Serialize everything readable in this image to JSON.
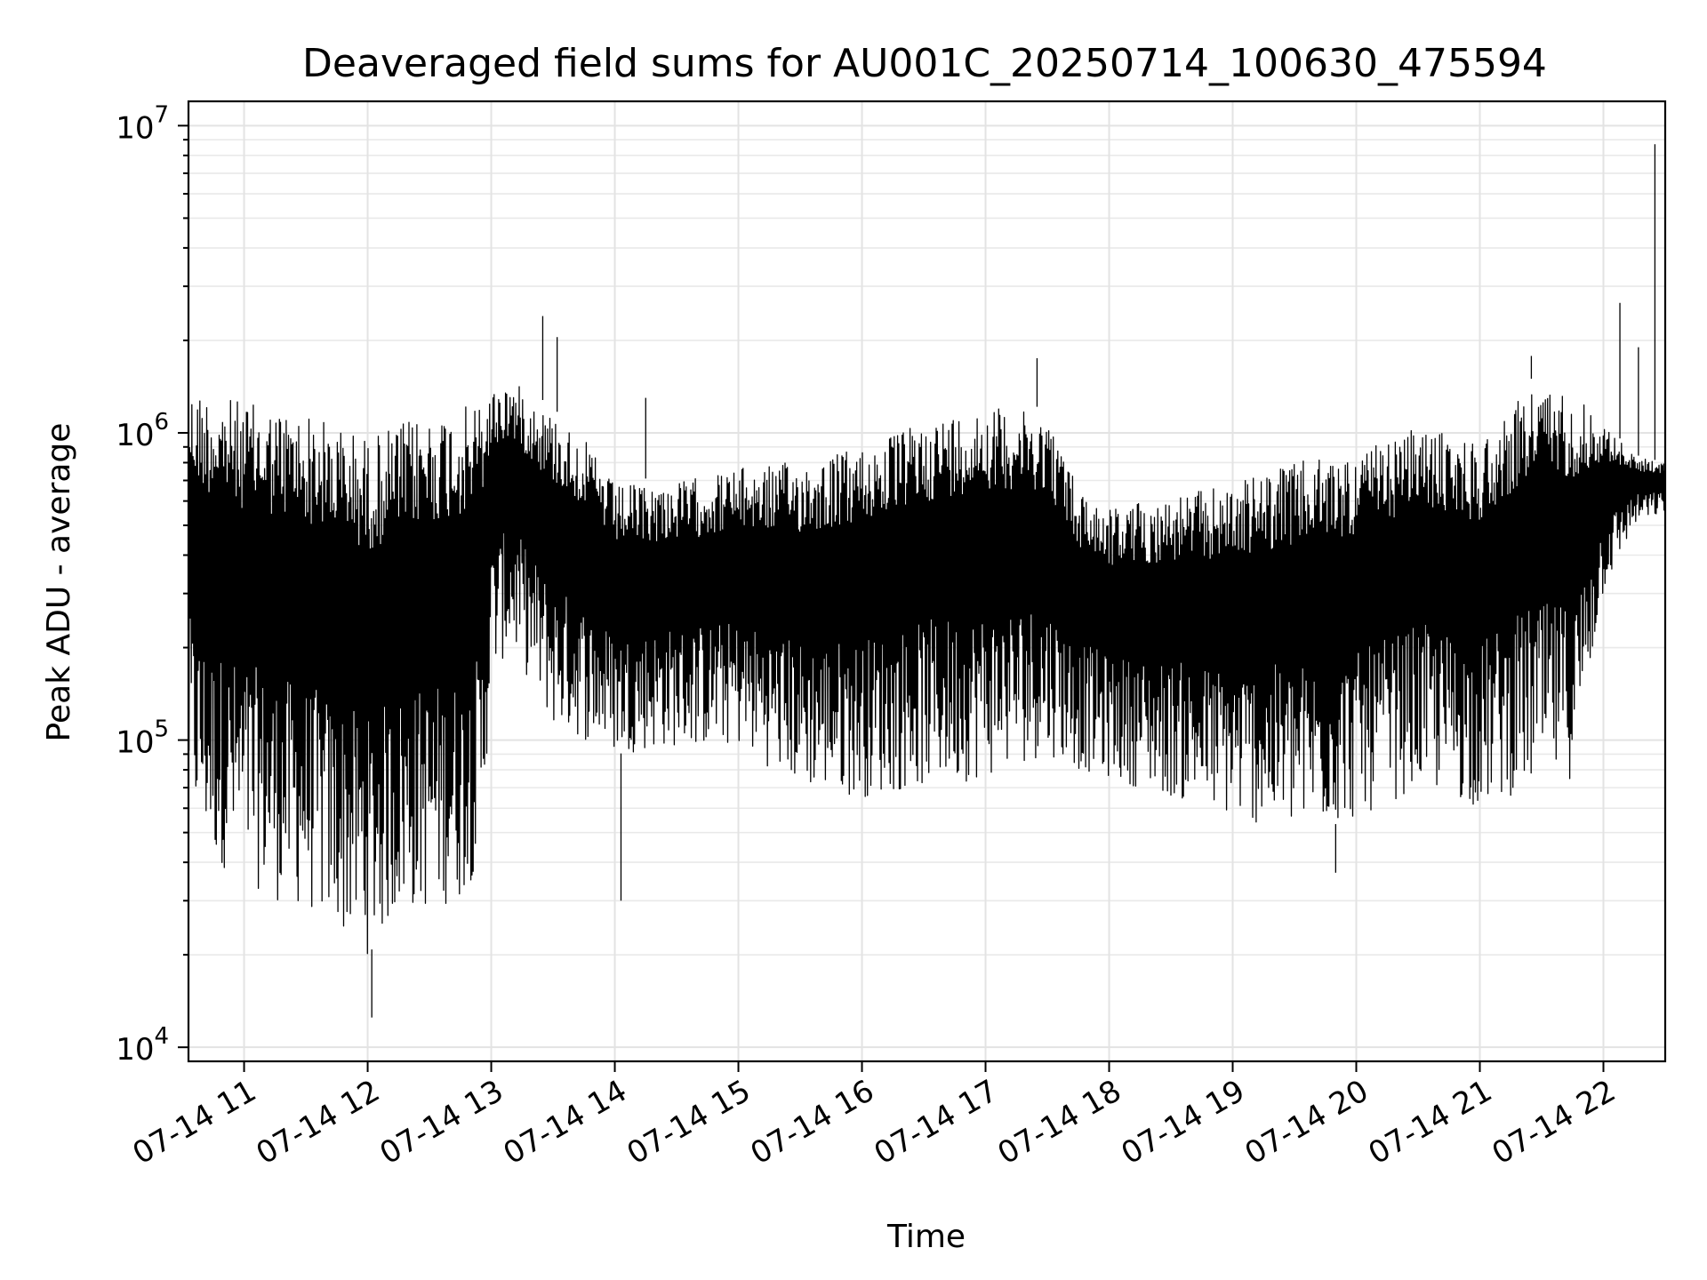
{
  "chart_data": {
    "type": "line",
    "title": "Deaveraged field sums for AU001C_20250714_100630_475594",
    "xlabel": "Time",
    "ylabel": "Peak ADU - average",
    "y_scale": "log",
    "ylim": [
      9000,
      12000000
    ],
    "xlim": [
      "2025-07-14T10:33",
      "2025-07-14T22:30"
    ],
    "grid": "major and minor",
    "x_ticks": [
      {
        "value": "2025-07-14T11:00",
        "label": "07-14 11"
      },
      {
        "value": "2025-07-14T12:00",
        "label": "07-14 12"
      },
      {
        "value": "2025-07-14T13:00",
        "label": "07-14 13"
      },
      {
        "value": "2025-07-14T14:00",
        "label": "07-14 14"
      },
      {
        "value": "2025-07-14T15:00",
        "label": "07-14 15"
      },
      {
        "value": "2025-07-14T16:00",
        "label": "07-14 16"
      },
      {
        "value": "2025-07-14T17:00",
        "label": "07-14 17"
      },
      {
        "value": "2025-07-14T18:00",
        "label": "07-14 18"
      },
      {
        "value": "2025-07-14T19:00",
        "label": "07-14 19"
      },
      {
        "value": "2025-07-14T20:00",
        "label": "07-14 20"
      },
      {
        "value": "2025-07-14T21:00",
        "label": "07-14 21"
      },
      {
        "value": "2025-07-14T22:00",
        "label": "07-14 22"
      }
    ],
    "y_ticks": [
      {
        "value": 10000,
        "base": "10",
        "exp": "4"
      },
      {
        "value": 100000,
        "base": "10",
        "exp": "5"
      },
      {
        "value": 1000000,
        "base": "10",
        "exp": "6"
      },
      {
        "value": 10000000,
        "base": "10",
        "exp": "7"
      }
    ],
    "envelope": [
      {
        "t": "2025-07-14T10:33",
        "high": 1500000,
        "low": 60000
      },
      {
        "t": "2025-07-14T10:45",
        "high": 1450000,
        "low": 40000
      },
      {
        "t": "2025-07-14T11:00",
        "high": 1350000,
        "low": 35000
      },
      {
        "t": "2025-07-14T11:15",
        "high": 1300000,
        "low": 30000
      },
      {
        "t": "2025-07-14T11:30",
        "high": 1250000,
        "low": 28000
      },
      {
        "t": "2025-07-14T11:45",
        "high": 1150000,
        "low": 24000
      },
      {
        "t": "2025-07-14T12:00",
        "high": 1050000,
        "low": 20000
      },
      {
        "t": "2025-07-14T12:15",
        "high": 1150000,
        "low": 27000
      },
      {
        "t": "2025-07-14T12:30",
        "high": 1250000,
        "low": 28000
      },
      {
        "t": "2025-07-14T12:45",
        "high": 1300000,
        "low": 30000
      },
      {
        "t": "2025-07-14T12:55",
        "high": 1350000,
        "low": 40000
      },
      {
        "t": "2025-07-14T13:00",
        "high": 1450000,
        "low": 160000
      },
      {
        "t": "2025-07-14T13:10",
        "high": 1550000,
        "low": 200000
      },
      {
        "t": "2025-07-14T13:30",
        "high": 1200000,
        "low": 110000
      },
      {
        "t": "2025-07-14T13:45",
        "high": 1000000,
        "low": 100000
      },
      {
        "t": "2025-07-14T14:00",
        "high": 700000,
        "low": 90000
      },
      {
        "t": "2025-07-14T14:30",
        "high": 720000,
        "low": 95000
      },
      {
        "t": "2025-07-14T15:00",
        "high": 800000,
        "low": 95000
      },
      {
        "t": "2025-07-14T15:30",
        "high": 850000,
        "low": 70000
      },
      {
        "t": "2025-07-14T16:00",
        "high": 950000,
        "low": 65000
      },
      {
        "t": "2025-07-14T16:30",
        "high": 1150000,
        "low": 70000
      },
      {
        "t": "2025-07-14T17:00",
        "high": 1300000,
        "low": 75000
      },
      {
        "t": "2025-07-14T17:30",
        "high": 1200000,
        "low": 90000
      },
      {
        "t": "2025-07-14T17:45",
        "high": 700000,
        "low": 80000
      },
      {
        "t": "2025-07-14T18:00",
        "high": 600000,
        "low": 75000
      },
      {
        "t": "2025-07-14T18:30",
        "high": 650000,
        "low": 65000
      },
      {
        "t": "2025-07-14T19:00",
        "high": 720000,
        "low": 55000
      },
      {
        "t": "2025-07-14T19:30",
        "high": 850000,
        "low": 50000
      },
      {
        "t": "2025-07-14T20:00",
        "high": 900000,
        "low": 55000
      },
      {
        "t": "2025-07-14T20:30",
        "high": 1100000,
        "low": 70000
      },
      {
        "t": "2025-07-14T21:00",
        "high": 1000000,
        "low": 60000
      },
      {
        "t": "2025-07-14T21:25",
        "high": 1500000,
        "low": 70000
      },
      {
        "t": "2025-07-14T21:45",
        "high": 1450000,
        "low": 75000
      },
      {
        "t": "2025-07-14T22:00",
        "high": 1100000,
        "low": 300000
      },
      {
        "t": "2025-07-14T22:15",
        "high": 850000,
        "low": 500000
      },
      {
        "t": "2025-07-14T22:30",
        "high": 800000,
        "low": 550000
      }
    ],
    "notable_points": [
      {
        "t": "2025-07-14T12:02",
        "value": 12500
      },
      {
        "t": "2025-07-14T13:25",
        "value": 2400000
      },
      {
        "t": "2025-07-14T13:32",
        "value": 2050000
      },
      {
        "t": "2025-07-14T14:03",
        "value": 30000
      },
      {
        "t": "2025-07-14T14:15",
        "value": 1300000
      },
      {
        "t": "2025-07-14T17:25",
        "value": 1750000
      },
      {
        "t": "2025-07-14T19:50",
        "value": 37000
      },
      {
        "t": "2025-07-14T21:25",
        "value": 1780000
      },
      {
        "t": "2025-07-14T22:08",
        "value": 2650000
      },
      {
        "t": "2025-07-14T22:17",
        "value": 1900000
      },
      {
        "t": "2025-07-14T22:25",
        "value": 8700000
      }
    ]
  }
}
